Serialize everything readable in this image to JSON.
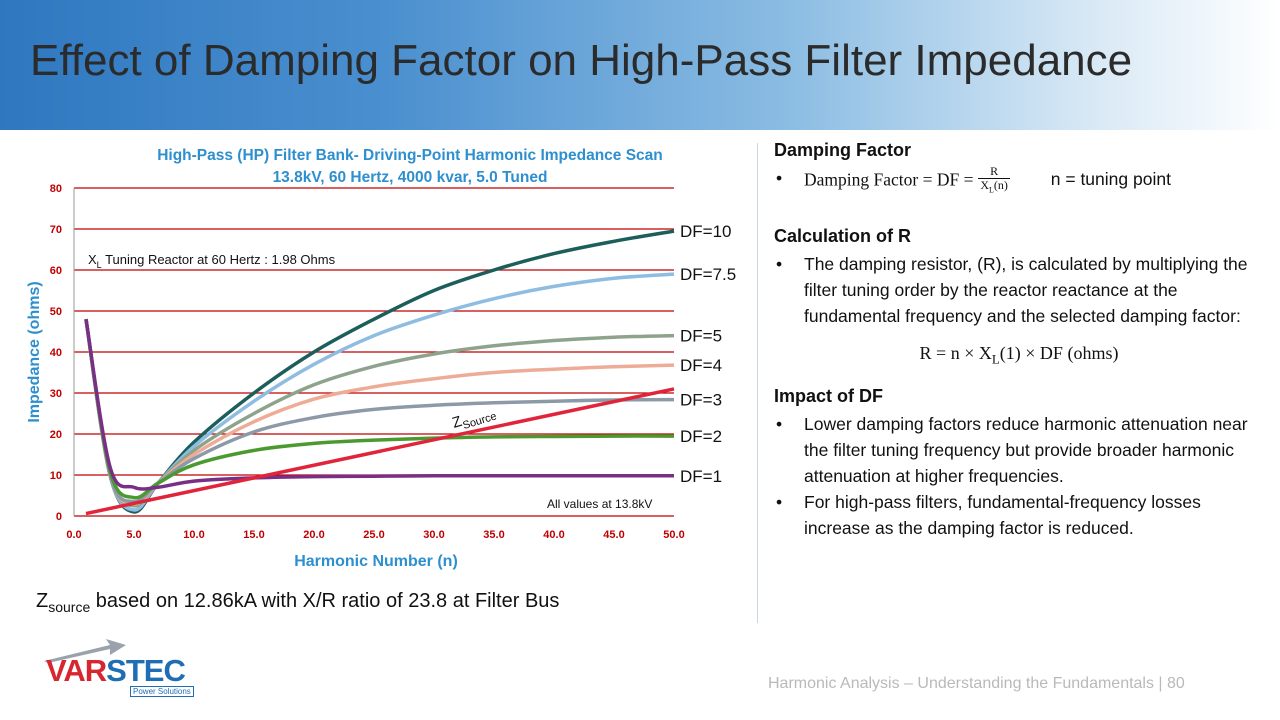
{
  "slide": {
    "title": "Effect of Damping Factor on High-Pass Filter Impedance",
    "footer": "Harmonic Analysis – Understanding the Fundamentals  |  80"
  },
  "note": {
    "z": "Z",
    "sub": "source",
    "text": " based on 12.86kA with X/R ratio of 23.8 at Filter Bus"
  },
  "right_panel": {
    "damping": {
      "heading": "Damping Factor",
      "formula_lhs": "Damping Factor = DF =",
      "frac_num": "R",
      "frac_den": "X",
      "frac_den_sub": "L",
      "frac_den_tail": "(n)",
      "note": "n = tuning point"
    },
    "calc": {
      "heading": "Calculation of R",
      "bullet": "The damping resistor, (R), is calculated by multiplying the filter tuning order by the reactor reactance at the fundamental frequency and the selected damping factor:",
      "formula_a": "R = n × X",
      "formula_sub": "L",
      "formula_b": "(1) × DF (ohms)"
    },
    "impact": {
      "heading": "Impact of DF",
      "bullets": [
        "Lower damping factors reduce harmonic attenuation near the filter tuning frequency but provide broader harmonic attenuation at higher frequencies.",
        "For high-pass filters, fundamental-frequency losses increase as the damping factor is reduced."
      ]
    }
  },
  "logo": {
    "brand_a": "VAR",
    "brand_b": "STEC",
    "tagline": "Power Solutions"
  },
  "chart_data": {
    "type": "line",
    "title": "High-Pass (HP) Filter Bank- Driving-Point Harmonic Impedance Scan",
    "subtitle": "13.8kV, 60 Hertz, 4000 kvar, 5.0 Tuned",
    "xlabel": "Harmonic Number (n)",
    "ylabel": "Impedance (ohms)",
    "xlim": [
      0,
      50
    ],
    "ylim": [
      0,
      80
    ],
    "x_ticks": [
      "0.0",
      "5.0",
      "10.0",
      "15.0",
      "20.0",
      "25.0",
      "30.0",
      "35.0",
      "40.0",
      "45.0",
      "50.0"
    ],
    "y_ticks": [
      "0",
      "10",
      "20",
      "30",
      "40",
      "50",
      "60",
      "70",
      "80"
    ],
    "grid": "horizontal",
    "annotations": {
      "xl_main": "X",
      "xl_sub": "L",
      "xl_rest": " Tuning Reactor at 60 Hertz : 1.98 Ohms",
      "values_note": "All values at 13.8kV",
      "zsource_main": "Z",
      "zsource_sub": "Source"
    },
    "colors": {
      "DF=10": "#1b5e5a",
      "DF=7.5": "#8fbde2",
      "DF=5": "#8ea38b",
      "DF=4": "#eeab96",
      "DF=3": "#8c9aa8",
      "DF=2": "#4a9a2f",
      "DF=1": "#7a2f86",
      "zsource": "#e0243a",
      "grid": "#c00000"
    },
    "series": [
      {
        "name": "DF=10",
        "x": [
          1,
          3,
          5,
          7,
          10,
          15,
          20,
          25,
          30,
          35,
          40,
          45,
          50
        ],
        "y": [
          48,
          10,
          1,
          8,
          18,
          30,
          40,
          48,
          55,
          60,
          64,
          67,
          69.5
        ]
      },
      {
        "name": "DF=7.5",
        "x": [
          1,
          3,
          5,
          7,
          10,
          15,
          20,
          25,
          30,
          35,
          40,
          45,
          50
        ],
        "y": [
          48,
          10,
          1.5,
          8,
          17,
          28,
          37,
          44,
          49,
          53,
          56,
          58,
          59
        ]
      },
      {
        "name": "DF=5",
        "x": [
          1,
          3,
          5,
          7,
          10,
          15,
          20,
          25,
          30,
          35,
          40,
          45,
          50
        ],
        "y": [
          48,
          10,
          2.5,
          8,
          16,
          25,
          32,
          36.5,
          39.5,
          41.5,
          42.8,
          43.6,
          44
        ]
      },
      {
        "name": "DF=4",
        "x": [
          1,
          3,
          5,
          7,
          10,
          15,
          20,
          25,
          30,
          35,
          40,
          45,
          50
        ],
        "y": [
          48,
          10,
          3,
          8,
          15,
          23,
          28.5,
          31.5,
          33.5,
          35,
          35.8,
          36.4,
          36.8
        ]
      },
      {
        "name": "DF=3",
        "x": [
          1,
          3,
          5,
          7,
          10,
          15,
          20,
          25,
          30,
          35,
          40,
          45,
          50
        ],
        "y": [
          48,
          10,
          3.5,
          8,
          14,
          20.5,
          24,
          26,
          27,
          27.6,
          28,
          28.3,
          28.4
        ]
      },
      {
        "name": "DF=2",
        "x": [
          1,
          3,
          5,
          7,
          10,
          15,
          20,
          25,
          30,
          35,
          40,
          45,
          50
        ],
        "y": [
          48,
          11,
          4.5,
          8,
          12.5,
          16,
          17.7,
          18.5,
          19,
          19.3,
          19.4,
          19.5,
          19.5
        ]
      },
      {
        "name": "DF=1",
        "x": [
          1,
          3,
          5,
          7,
          10,
          15,
          20,
          25,
          30,
          35,
          40,
          45,
          50
        ],
        "y": [
          48,
          12,
          7,
          7,
          8.5,
          9.3,
          9.6,
          9.7,
          9.8,
          9.8,
          9.8,
          9.8,
          9.8
        ]
      },
      {
        "name": "zsource",
        "x": [
          1,
          50
        ],
        "y": [
          0.6,
          31
        ]
      }
    ]
  }
}
